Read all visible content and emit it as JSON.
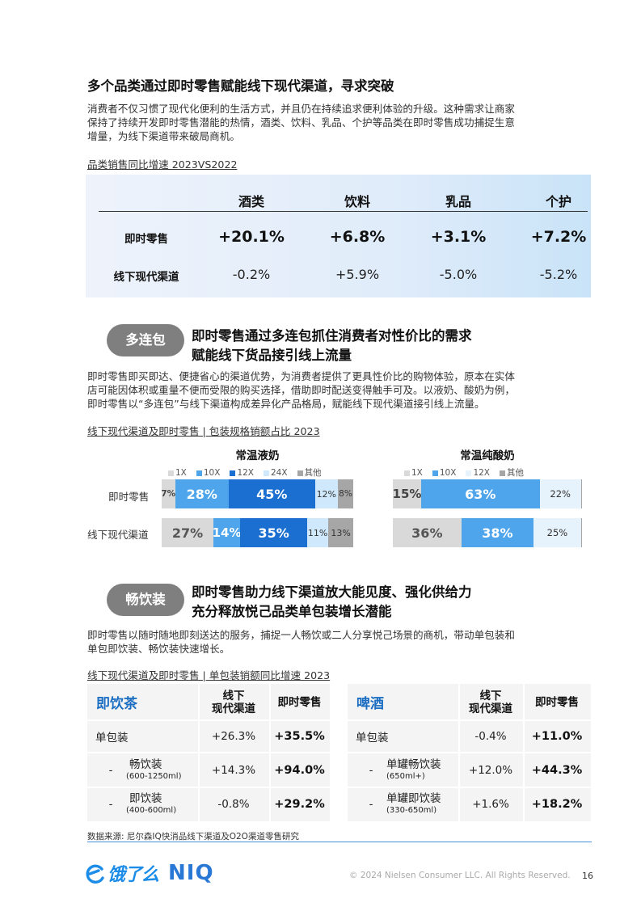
{
  "section1": {
    "title": "多个品类通过即时零售赋能线下现代渠道，寻求突破",
    "para": [
      "消费者不仅习惯了现代化便利的生活方式，并且仍在持续追求便利体验的升级。这种需求让商家",
      "保持了持续开发即时零售潜能的热情，酒类、饮料、乳品、个护等品类在即时零售成功捕捉生意",
      "增量，为线下渠道带来破局商机。"
    ],
    "subtitle": "品类销售同比增速 2023VS2022",
    "table": {
      "columns": [
        "酒类",
        "饮料",
        "乳品",
        "个护"
      ],
      "rows": [
        {
          "label": "即时零售",
          "values": [
            "+20.1%",
            "+6.8%",
            "+3.1%",
            "+7.2%"
          ]
        },
        {
          "label": "线下现代渠道",
          "values": [
            "-0.2%",
            "+5.9%",
            "-5.0%",
            "-5.2%"
          ]
        }
      ]
    }
  },
  "section2": {
    "pill": "多连包",
    "title": [
      "即时零售通过多连包抓住消费者对性价比的需求",
      "赋能线下货品接引线上流量"
    ],
    "para": [
      "即时零售即买即达、便捷省心的渠道优势，为消费者提供了更具性价比的购物体验，原本在实体",
      "店可能因体积或重量不便而受限的购买选择，借助即时配送变得触手可及。以液奶、酸奶为例，",
      "即时零售以“多连包”与线下渠道构成差异化产品格局，赋能线下现代渠道接引线上流量。"
    ],
    "subtitle": "线下现代渠道及即时零售 | 包装规格销额占比 2023",
    "row_labels": [
      "即时零售",
      "线下现代渠道"
    ]
  },
  "chart_data": [
    {
      "type": "bar",
      "stacked": true,
      "orientation": "horizontal",
      "title": "常温液奶",
      "categories": [
        "即时零售",
        "线下现代渠道"
      ],
      "series": [
        {
          "name": "1X",
          "values": [
            7,
            27
          ],
          "labels": [
            "7%",
            "27%"
          ],
          "color": "#d9d9d9"
        },
        {
          "name": "10X",
          "values": [
            28,
            14
          ],
          "labels": [
            "28%",
            "14%"
          ],
          "color": "#4ea5ec"
        },
        {
          "name": "12X",
          "values": [
            45,
            35
          ],
          "labels": [
            "45%",
            "35%"
          ],
          "color": "#1a6fd1"
        },
        {
          "name": "24X",
          "values": [
            12,
            11
          ],
          "labels": [
            "12%",
            "11%"
          ],
          "color": "#cfe8fb"
        },
        {
          "name": "其他",
          "values": [
            8,
            13
          ],
          "labels": [
            "8%",
            "13%"
          ],
          "color": "#a6a6a6"
        }
      ],
      "legend": "top"
    },
    {
      "type": "bar",
      "stacked": true,
      "orientation": "horizontal",
      "title": "常温纯酸奶",
      "categories": [
        "即时零售",
        "线下现代渠道"
      ],
      "series": [
        {
          "name": "1X",
          "values": [
            15,
            36
          ],
          "labels": [
            "15%",
            "36%"
          ],
          "color": "#d9d9d9"
        },
        {
          "name": "10X",
          "values": [
            63,
            38
          ],
          "labels": [
            "63%",
            "38%"
          ],
          "color": "#4ea5ec"
        },
        {
          "name": "12X",
          "values": [
            22,
            25
          ],
          "labels": [
            "22%",
            "25%"
          ],
          "color": "#e6f2fc"
        },
        {
          "name": "其他",
          "values": [
            0.5,
            0.5
          ],
          "labels": [
            "",
            ""
          ],
          "color": "#a6a6a6"
        }
      ],
      "legend": "top"
    }
  ],
  "section3": {
    "pill": "畅饮装",
    "title": [
      "即时零售助力线下渠道放大能见度、强化供给力",
      "充分释放悦己品类单包装增长潜能"
    ],
    "para": [
      "即时零售以随时随地即刻送达的服务，捕捉一人畅饮或二人分享悦己场景的商机，带动单包装和",
      "单包即饮装、畅饮装快速增长。"
    ],
    "subtitle": "线下现代渠道及即时零售 | 单包装销额同比增速 2023",
    "tables": [
      {
        "name": "即饮茶",
        "col1": [
          "线下",
          "现代渠道"
        ],
        "col2": "即时零售",
        "rows": [
          {
            "dash": "",
            "label": "单包装",
            "size": "",
            "offline": "+26.3%",
            "instant": "+35.5%"
          },
          {
            "dash": "-",
            "label": "畅饮装",
            "size": "(600-1250ml)",
            "offline": "+14.3%",
            "instant": "+94.0%"
          },
          {
            "dash": "-",
            "label": "即饮装",
            "size": "(400-600ml)",
            "offline": "-0.8%",
            "instant": "+29.2%"
          }
        ]
      },
      {
        "name": "啤酒",
        "col1": [
          "线下",
          "现代渠道"
        ],
        "col2": "即时零售",
        "rows": [
          {
            "dash": "",
            "label": "单包装",
            "size": "",
            "offline": "-0.4%",
            "instant": "+11.0%"
          },
          {
            "dash": "-",
            "label": "单罐畅饮装",
            "size": "(650ml+)",
            "offline": "+12.0%",
            "instant": "+44.3%"
          },
          {
            "dash": "-",
            "label": "单罐即饮装",
            "size": "(330-650ml)",
            "offline": "+1.6%",
            "instant": "+18.2%"
          }
        ]
      }
    ]
  },
  "footer": {
    "source": "数据来源: 尼尔森IQ快消品线下渠道及O2O渠道零售研究",
    "logo_eleme": "饿了么",
    "logo_niq": "NIQ",
    "copyright": "© 2024 Nielsen Consumer LLC. All Rights Reserved.",
    "page": "16"
  },
  "colors": {
    "brand_blue": "#1b6ec2",
    "niq_blue": "#2a78d6",
    "pill_gray": "#7f7f7f"
  }
}
